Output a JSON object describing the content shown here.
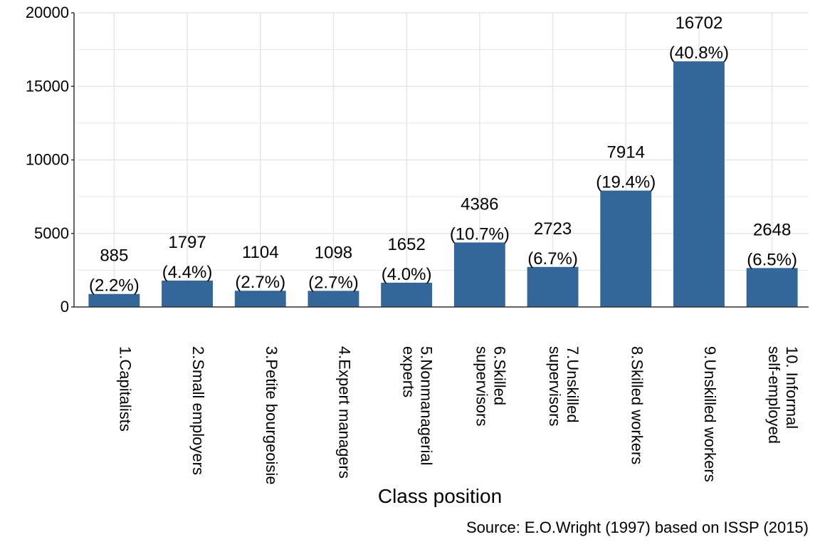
{
  "chart_data": {
    "type": "bar",
    "categories": [
      [
        "1.Capitalists"
      ],
      [
        "2.Small employers"
      ],
      [
        "3.Petite bourgeoisie"
      ],
      [
        "4.Expert managers"
      ],
      [
        "5.Nonmanagerial",
        "experts"
      ],
      [
        "6.Skilled",
        "supervisors"
      ],
      [
        "7.Unskilled",
        "supervisors"
      ],
      [
        "8.Skilled workers"
      ],
      [
        "9.Unskilled workers"
      ],
      [
        "10. Informal",
        "self-employed"
      ]
    ],
    "values": [
      885,
      1797,
      1104,
      1098,
      1652,
      4386,
      2723,
      7914,
      16702,
      2648
    ],
    "percent_labels": [
      "(2.2%)",
      "(4.4%)",
      "(2.7%)",
      "(2.7%)",
      "(4.0%)",
      "(10.7%)",
      "(6.7%)",
      "(19.4%)",
      "(40.8%)",
      "(6.5%)"
    ],
    "xlabel": "Class position",
    "ylabel": "",
    "ylim": [
      0,
      20000
    ],
    "yticks": [
      0,
      5000,
      10000,
      15000,
      20000
    ],
    "grid": true,
    "bar_color": "#336699",
    "source": "Source: E.O.Wright (1997) based on ISSP (2015)"
  }
}
